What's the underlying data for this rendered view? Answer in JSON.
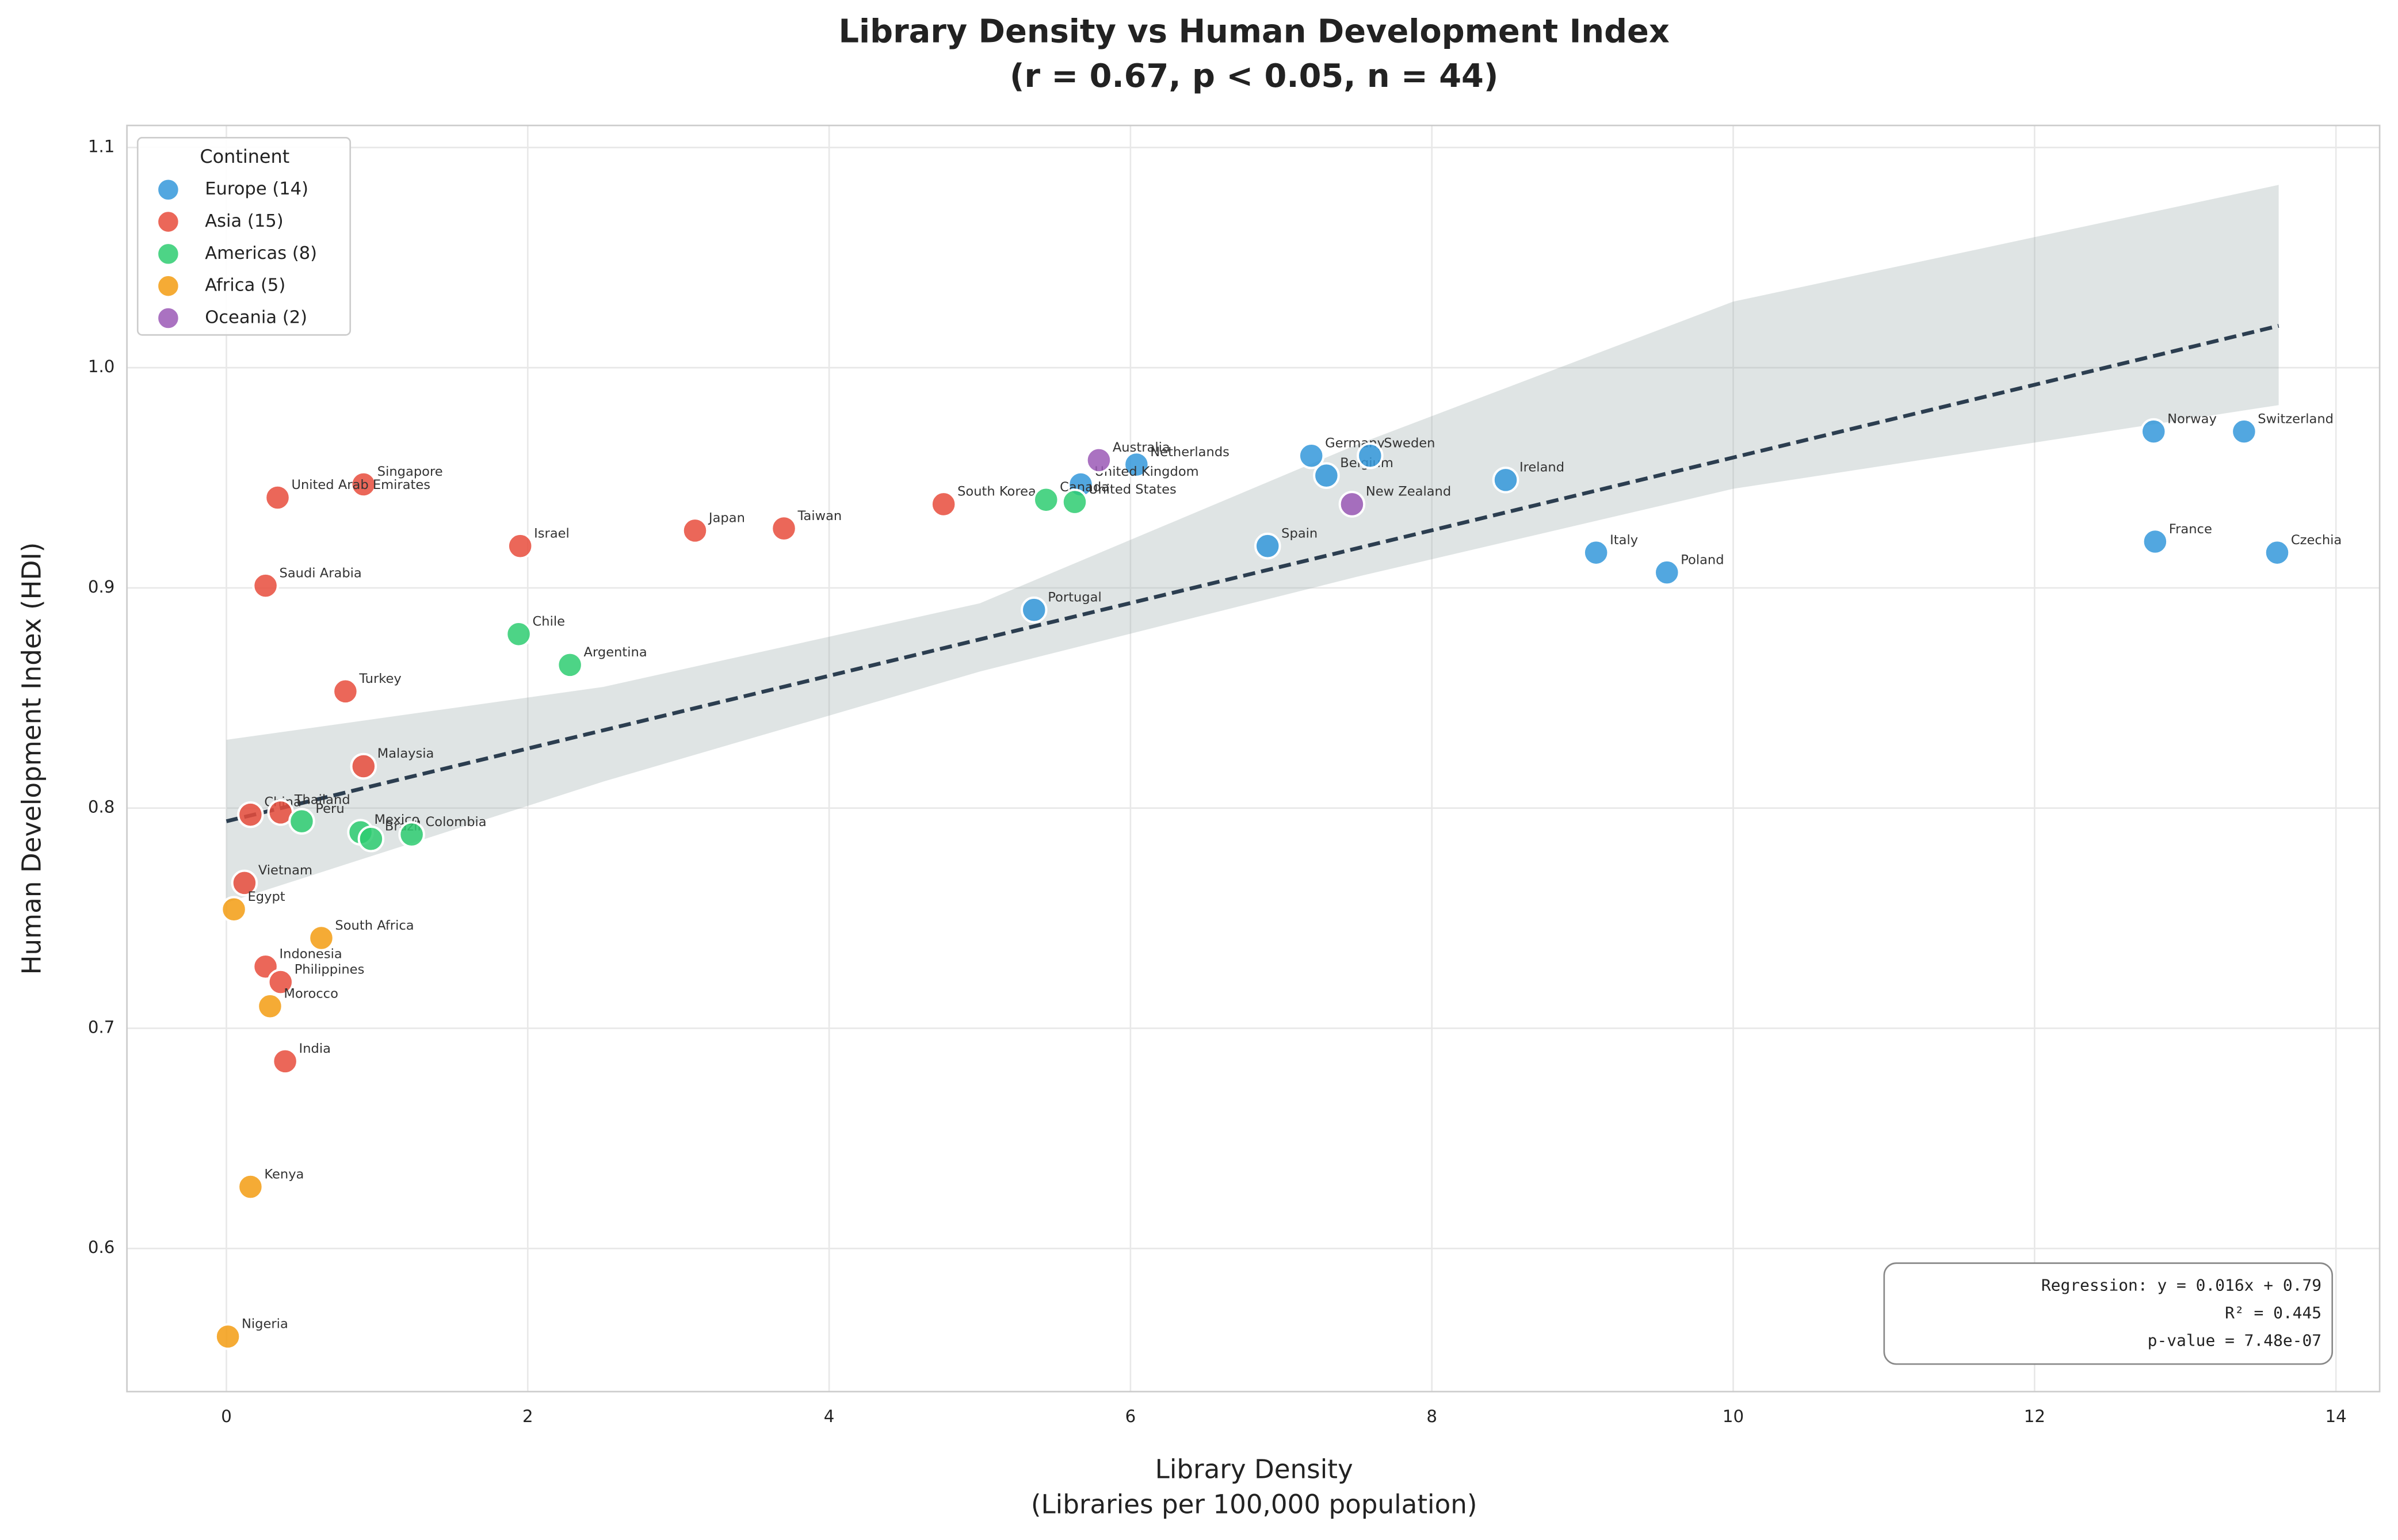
{
  "chart_data": {
    "type": "scatter",
    "title": "Library Density vs Human Development Index",
    "subtitle": "(r = 0.67, p < 0.05, n = 44)",
    "x_label": "Library Density",
    "x_label_sub": "(Libraries per 100,000 population)",
    "y_label": "Human Development Index (HDI)",
    "xlim": [
      -0.66,
      14.29
    ],
    "ylim": [
      0.535,
      1.11
    ],
    "xticks": [
      0,
      2,
      4,
      6,
      8,
      10,
      12,
      14
    ],
    "yticks": [
      0.6,
      0.7,
      0.8,
      {
        "value": 1,
        "label": "1.0"
      },
      0.9,
      1.1
    ],
    "grid": true,
    "legend_title": "Continent",
    "legend_position": "upper left",
    "series": [
      {
        "name": "Europe (14)",
        "color": "#3498db",
        "labels": [
          "Norway",
          "Switzerland",
          "France",
          "Czechia",
          "Germany",
          "Belgium",
          "Sweden",
          "Ireland",
          "Netherlands",
          "United Kingdom",
          "Italy",
          "Poland",
          "Spain",
          "Portugal"
        ],
        "x": [
          12.79,
          13.39,
          12.8,
          13.61,
          7.2,
          7.3,
          7.59,
          8.49,
          6.04,
          5.67,
          9.09,
          9.56,
          6.91,
          5.36
        ],
        "values": [
          0.971,
          0.971,
          0.921,
          0.916,
          0.96,
          0.951,
          0.96,
          0.949,
          0.956,
          0.947,
          0.916,
          0.907,
          0.919,
          0.89
        ]
      },
      {
        "name": "Asia (15)",
        "color": "#e74c3c",
        "labels": [
          "Singapore",
          "United Arab Emirates",
          "Israel",
          "Japan",
          "Taiwan",
          "South Korea",
          "Saudi Arabia",
          "Turkey",
          "Malaysia",
          "China",
          "Thailand",
          "Vietnam",
          "Indonesia",
          "Philippines",
          "India"
        ],
        "x": [
          0.91,
          0.34,
          1.95,
          3.11,
          3.7,
          4.76,
          0.26,
          0.79,
          0.91,
          0.16,
          0.36,
          0.12,
          0.26,
          0.36,
          0.39
        ],
        "values": [
          0.947,
          0.941,
          0.919,
          0.926,
          0.927,
          0.938,
          0.901,
          0.853,
          0.819,
          0.797,
          0.798,
          0.766,
          0.728,
          0.721,
          0.685
        ]
      },
      {
        "name": "Americas (8)",
        "color": "#2ecc71",
        "labels": [
          "Canada",
          "United States",
          "Chile",
          "Argentina",
          "Mexico",
          "Brazil",
          "Colombia",
          "Peru"
        ],
        "x": [
          5.44,
          5.63,
          1.94,
          2.28,
          0.89,
          0.96,
          1.23,
          0.5
        ],
        "values": [
          0.94,
          0.939,
          0.879,
          0.865,
          0.789,
          0.786,
          0.788,
          0.794
        ]
      },
      {
        "name": "Africa (5)",
        "color": "#f39c12",
        "labels": [
          "Egypt",
          "South Africa",
          "Morocco",
          "Kenya",
          "Nigeria"
        ],
        "x": [
          0.05,
          0.63,
          0.29,
          0.16,
          0.01
        ],
        "values": [
          0.754,
          0.741,
          0.71,
          0.628,
          0.56
        ]
      },
      {
        "name": "Oceania (2)",
        "color": "#9b59b6",
        "labels": [
          "Australia",
          "New Zealand"
        ],
        "x": [
          5.79,
          7.47
        ],
        "values": [
          0.958,
          0.938
        ]
      }
    ],
    "regression": {
      "color": "#2c3e50",
      "x": [
        0,
        13.62
      ],
      "values": [
        0.794,
        1.019
      ],
      "band_x": [
        0,
        2.5,
        5,
        7.5,
        10,
        13.62
      ],
      "band_upper": [
        0.831,
        0.855,
        0.893,
        0.965,
        1.03,
        1.083
      ],
      "band_lower": [
        0.757,
        0.812,
        0.862,
        0.905,
        0.945,
        0.983
      ]
    },
    "stats_box": [
      "Regression: y = 0.016x + 0.79",
      "R² = 0.445",
      "p-value = 7.48e-07"
    ]
  }
}
